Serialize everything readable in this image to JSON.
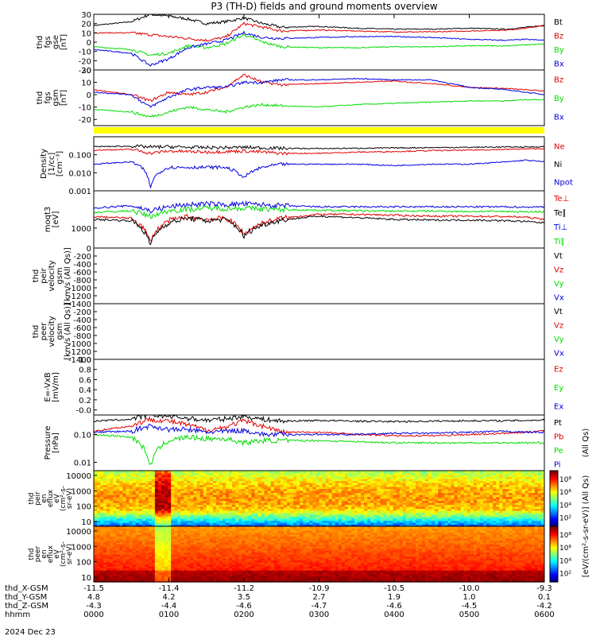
{
  "title": "P3 (TH-D) fields and ground moments overview",
  "palette": {
    "black": "#000000",
    "red": "#e00000",
    "green": "#00dd00",
    "blue": "#0000e0",
    "yellow": "#ffff00"
  },
  "panels": [
    {
      "id": "fgs-gse",
      "ylabel": [
        "thd",
        "fgs",
        "gse",
        "[nT]"
      ],
      "scale": "linear",
      "ylim": [
        -30,
        30
      ],
      "ticks": [
        "30",
        "20",
        "10",
        "0",
        "-10",
        "-20",
        "-30"
      ],
      "tick_values": [
        30,
        20,
        10,
        0,
        -10,
        -20,
        -30
      ],
      "legend": [
        {
          "label": "Bt",
          "color": "black"
        },
        {
          "label": "Bz",
          "color": "red"
        },
        {
          "label": "By",
          "color": "green"
        },
        {
          "label": "Bx",
          "color": "blue"
        }
      ]
    },
    {
      "id": "fgs-gsm",
      "ylabel": [
        "thd",
        "fgs",
        "gsm",
        "[nT]"
      ],
      "scale": "linear",
      "ylim": [
        -25,
        20
      ],
      "ticks": [
        "20",
        "10",
        "0",
        "-10",
        "-20"
      ],
      "tick_values": [
        20,
        10,
        0,
        -10,
        -20
      ],
      "legend": [
        {
          "label": "Bz",
          "color": "red"
        },
        {
          "label": "By",
          "color": "green"
        },
        {
          "label": "Bx",
          "color": "blue"
        }
      ]
    },
    {
      "id": "density",
      "ylabel": [
        "Density",
        "[1/cc]",
        "[cm⁻³]"
      ],
      "scale": "log",
      "ylim": [
        0.001,
        1.0
      ],
      "ticks": [
        "0.100",
        "0.010",
        "0.001"
      ],
      "tick_values": [
        0.1,
        0.01,
        0.001
      ],
      "legend": [
        {
          "label": "Ne",
          "color": "red"
        },
        {
          "label": "Ni",
          "color": "black"
        },
        {
          "label": "Npot",
          "color": "blue"
        }
      ]
    },
    {
      "id": "temperature",
      "ylabel": [
        "moqt3",
        "[eV]"
      ],
      "scale": "log",
      "ylim": [
        200,
        20000
      ],
      "ticks": [
        "1000"
      ],
      "tick_values": [
        1000
      ],
      "legend": [
        {
          "label": "Te⊥",
          "color": "red"
        },
        {
          "label": "Te∥",
          "color": "black"
        },
        {
          "label": "Ti⊥",
          "color": "blue"
        },
        {
          "label": "Ti∥",
          "color": "green"
        }
      ]
    },
    {
      "id": "ion-velocity",
      "ylabel": [
        "thd",
        "peir",
        "velocity",
        "gsm",
        "[km/s (All Qs)]"
      ],
      "scale": "linear",
      "ylim": [
        -1400,
        0
      ],
      "ticks": [
        "0",
        "-200",
        "-400",
        "-600",
        "-800",
        "-1000",
        "-1200",
        "-1400"
      ],
      "tick_values": [
        0,
        -200,
        -400,
        -600,
        -800,
        -1000,
        -1200,
        -1400
      ],
      "legend": [
        {
          "label": "Vt",
          "color": "black"
        },
        {
          "label": "Vz",
          "color": "red"
        },
        {
          "label": "Vy",
          "color": "green"
        },
        {
          "label": "Vx",
          "color": "blue"
        }
      ]
    },
    {
      "id": "electron-velocity",
      "ylabel": [
        "thd",
        "peer",
        "velocity",
        "gsm",
        "[km/s (All Qs)]"
      ],
      "scale": "linear",
      "ylim": [
        -1400,
        0
      ],
      "ticks": [
        "-200",
        "-400",
        "-600",
        "-800",
        "-1000",
        "-1200",
        "-1400"
      ],
      "tick_values": [
        -200,
        -400,
        -600,
        -800,
        -1000,
        -1200,
        -1400
      ],
      "legend": [
        {
          "label": "Vt",
          "color": "black"
        },
        {
          "label": "Vz",
          "color": "red"
        },
        {
          "label": "Vy",
          "color": "green"
        },
        {
          "label": "Vx",
          "color": "blue"
        }
      ]
    },
    {
      "id": "e-field",
      "ylabel": [
        "E=-VxB",
        "[mV/m]"
      ],
      "scale": "linear",
      "ylim": [
        -0.1,
        1.0
      ],
      "ticks": [
        "1.0",
        "0.8",
        "0.6",
        "0.4",
        "0.2",
        "-0.0"
      ],
      "tick_values": [
        1.0,
        0.8,
        0.6,
        0.4,
        0.2,
        0.0
      ],
      "legend": [
        {
          "label": "Ez",
          "color": "red"
        },
        {
          "label": "Ey",
          "color": "green"
        },
        {
          "label": "Ex",
          "color": "blue"
        }
      ]
    },
    {
      "id": "pressure",
      "ylabel": [
        "Pressure",
        "[nPa]"
      ],
      "scale": "log",
      "ylim": [
        0.005,
        0.5
      ],
      "ticks": [
        "0.10",
        "0.01"
      ],
      "tick_values": [
        0.1,
        0.01
      ],
      "legend": [
        {
          "label": "Pt",
          "color": "black"
        },
        {
          "label": "Pb",
          "color": "red"
        },
        {
          "label": "Pe",
          "color": "green"
        },
        {
          "label": "Pi",
          "color": "blue"
        }
      ],
      "right_note": "(All Qs)"
    }
  ],
  "spectrograms": [
    {
      "id": "ion-spec",
      "ylabel": [
        "thd",
        "peir",
        "en",
        "eflux",
        "eV",
        "(cm²-s-",
        "sr-eV)"
      ],
      "ticks": [
        "10000",
        "1000",
        "100",
        "10"
      ],
      "tick_values": [
        10000,
        1000,
        100,
        10
      ],
      "yrange": [
        5,
        20000
      ],
      "colorbar_ticks": [
        "10⁸",
        "10⁶",
        "10⁴",
        "10²"
      ],
      "colorbar_values": [
        8,
        6,
        4,
        2
      ],
      "colorbar_range": [
        0.6,
        9.2
      ]
    },
    {
      "id": "electron-spec",
      "ylabel": [
        "thd",
        "peer",
        "en",
        "eflux",
        "eV",
        "(cm²-s-",
        "sr-eV)"
      ],
      "ticks": [
        "10000",
        "1000",
        "100",
        "10"
      ],
      "tick_values": [
        10000,
        1000,
        100,
        10
      ],
      "yrange": [
        5,
        20000
      ],
      "colorbar_ticks": [
        "10⁸",
        "10⁶",
        "10⁴",
        "10²"
      ],
      "colorbar_values": [
        8,
        6,
        4,
        2
      ],
      "colorbar_range": [
        0.6,
        9.2
      ]
    }
  ],
  "colorbar_title": "[eV/(cm²-s-sr-eV)] (All Qs)",
  "x_axis": {
    "rows": [
      {
        "name": "thd_X-GSM",
        "values": [
          "-11.5",
          "-11.4",
          "-11.2",
          "-10.9",
          "-10.5",
          "-10.0",
          "-9.3"
        ]
      },
      {
        "name": "thd_Y-GSM",
        "values": [
          "4.8",
          "4.2",
          "3.5",
          "2.7",
          "1.9",
          "1.0",
          "0.1"
        ]
      },
      {
        "name": "thd_Z-GSM",
        "values": [
          "-4.3",
          "-4.4",
          "-4.6",
          "-4.7",
          "-4.6",
          "-4.5",
          "-4.2"
        ]
      },
      {
        "name": "hhmm",
        "values": [
          "0000",
          "0100",
          "0200",
          "0300",
          "0400",
          "0500",
          "0600"
        ]
      }
    ],
    "date": "2024 Dec 23",
    "time_range_hours": [
      0,
      6
    ]
  },
  "chart_data": {
    "type": "line",
    "title": "P3 (TH-D) fields and ground moments overview",
    "x": [
      0.0,
      0.5,
      0.75,
      1.0,
      1.25,
      1.5,
      1.75,
      2.0,
      2.25,
      2.5,
      3.0,
      3.5,
      4.0,
      4.5,
      5.0,
      5.5,
      5.75,
      6.0
    ],
    "xlabel": "hhmm",
    "panels": [
      {
        "panel": "fgs-gse",
        "series": [
          {
            "name": "Bt",
            "values": [
              18,
              22,
              30,
              28,
              25,
              20,
              22,
              26,
              20,
              16,
              17,
              15,
              14,
              14,
              15,
              14,
              16,
              18
            ]
          },
          {
            "name": "Bz",
            "values": [
              10,
              10,
              8,
              6,
              4,
              2,
              5,
              20,
              16,
              12,
              13,
              12,
              11,
              11,
              12,
              13,
              15,
              18
            ]
          },
          {
            "name": "By",
            "values": [
              -5,
              -8,
              -14,
              -12,
              -4,
              -6,
              -2,
              8,
              0,
              -5,
              -6,
              -6,
              -5,
              -5,
              -4,
              -4,
              -3,
              -2
            ]
          },
          {
            "name": "Bx",
            "values": [
              -8,
              -12,
              -25,
              -18,
              -6,
              -2,
              2,
              10,
              5,
              4,
              5,
              6,
              6,
              5,
              3,
              2,
              3,
              2
            ]
          }
        ]
      },
      {
        "panel": "fgs-gsm",
        "series": [
          {
            "name": "Bz",
            "values": [
              4,
              0,
              -5,
              2,
              0,
              2,
              6,
              16,
              10,
              8,
              9,
              10,
              11,
              9,
              6,
              5,
              4,
              3
            ]
          },
          {
            "name": "By",
            "values": [
              -12,
              -14,
              -18,
              -14,
              -10,
              -12,
              -14,
              -10,
              -8,
              -9,
              -10,
              -8,
              -7,
              -6,
              -5,
              -5,
              -4,
              -4
            ]
          },
          {
            "name": "Bx",
            "values": [
              2,
              0,
              -10,
              -2,
              4,
              6,
              6,
              10,
              10,
              12,
              12,
              13,
              12,
              12,
              6,
              4,
              2,
              0
            ]
          }
        ]
      },
      {
        "panel": "density",
        "series": [
          {
            "name": "Ne",
            "values": [
              0.18,
              0.2,
              0.12,
              0.16,
              0.15,
              0.14,
              0.15,
              0.16,
              0.14,
              0.12,
              0.12,
              0.14,
              0.15,
              0.17,
              0.18,
              0.2,
              0.21,
              0.22
            ]
          },
          {
            "name": "Ni",
            "values": [
              0.28,
              0.3,
              0.27,
              0.28,
              0.26,
              0.25,
              0.25,
              0.26,
              0.24,
              0.23,
              0.22,
              0.23,
              0.24,
              0.25,
              0.26,
              0.27,
              0.27,
              0.28
            ]
          },
          {
            "name": "Npot",
            "values": [
              0.03,
              0.04,
              0.001,
              0.02,
              0.02,
              0.02,
              0.02,
              0.005,
              0.02,
              0.03,
              0.03,
              0.03,
              0.025,
              0.03,
              0.03,
              0.04,
              0.05,
              0.04
            ]
          }
        ]
      },
      {
        "panel": "temperature",
        "series": [
          {
            "name": "Te⊥",
            "values": [
              2500,
              2200,
              300,
              1800,
              2500,
              2000,
              2200,
              600,
              1500,
              2200,
              3000,
              3000,
              2800,
              2600,
              2600,
              2500,
              2400,
              2000
            ]
          },
          {
            "name": "Te∥",
            "values": [
              2000,
              1800,
              250,
              1500,
              2200,
              1800,
              2000,
              500,
              1300,
              1900,
              2600,
              2300,
              2000,
              1900,
              1900,
              1800,
              1700,
              1500
            ]
          },
          {
            "name": "Ti⊥",
            "values": [
              5000,
              6000,
              4000,
              5500,
              6500,
              7000,
              6500,
              7000,
              6500,
              6000,
              5500,
              5500,
              5500,
              5500,
              5500,
              5500,
              5400,
              5500
            ]
          },
          {
            "name": "Ti∥",
            "values": [
              3500,
              4000,
              2500,
              4000,
              4500,
              5000,
              4800,
              5000,
              4600,
              4400,
              4200,
              4000,
              3900,
              3900,
              3800,
              3800,
              3700,
              3700
            ]
          }
        ]
      },
      {
        "panel": "pressure",
        "series": [
          {
            "name": "Pt",
            "values": [
              0.3,
              0.35,
              0.5,
              0.45,
              0.38,
              0.32,
              0.36,
              0.45,
              0.35,
              0.3,
              0.32,
              0.3,
              0.29,
              0.3,
              0.31,
              0.31,
              0.32,
              0.33
            ]
          },
          {
            "name": "Pb",
            "values": [
              0.13,
              0.2,
              0.35,
              0.3,
              0.22,
              0.14,
              0.18,
              0.3,
              0.2,
              0.12,
              0.12,
              0.1,
              0.09,
              0.09,
              0.1,
              0.11,
              0.12,
              0.14
            ]
          },
          {
            "name": "Pe",
            "values": [
              0.1,
              0.08,
              0.006,
              0.06,
              0.08,
              0.07,
              0.07,
              0.05,
              0.06,
              0.06,
              0.06,
              0.055,
              0.05,
              0.05,
              0.05,
              0.05,
              0.05,
              0.05
            ]
          },
          {
            "name": "Pi",
            "values": [
              0.12,
              0.13,
              0.2,
              0.15,
              0.15,
              0.12,
              0.13,
              0.14,
              0.1,
              0.1,
              0.1,
              0.1,
              0.11,
              0.11,
              0.12,
              0.13,
              0.12,
              0.12
            ]
          }
        ]
      }
    ]
  }
}
